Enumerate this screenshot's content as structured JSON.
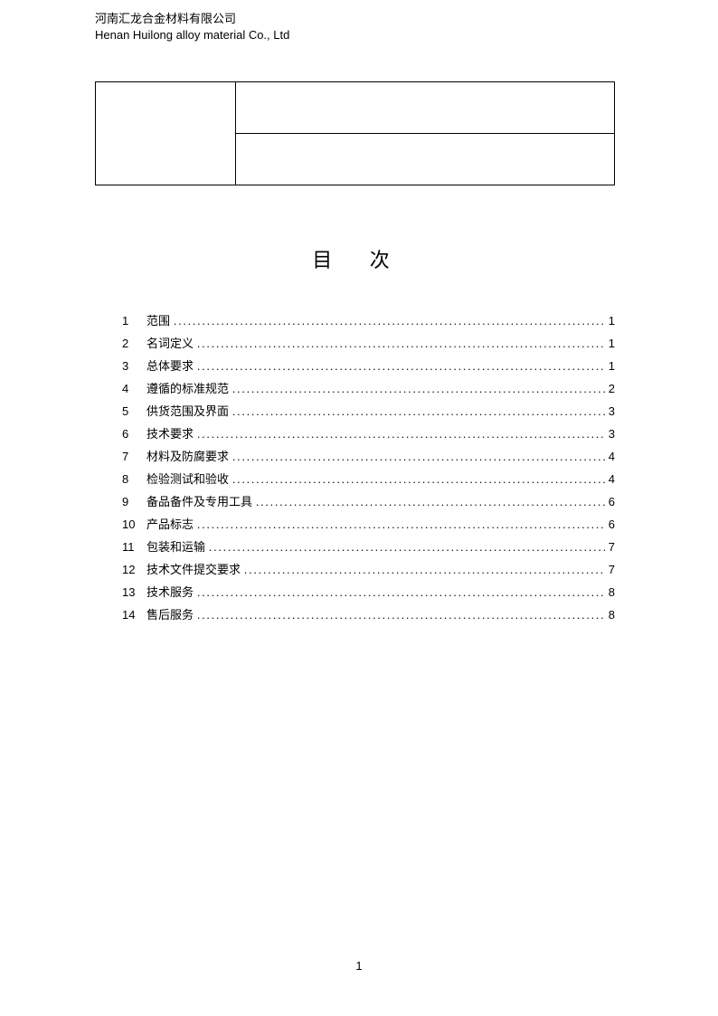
{
  "header": {
    "company_cn": "河南汇龙合金材料有限公司",
    "company_en": "Henan Huilong alloy material Co., Ltd"
  },
  "title": "目 次",
  "toc": [
    {
      "num": "1",
      "label": "范围",
      "page": "1"
    },
    {
      "num": "2",
      "label": "名词定义",
      "page": "1"
    },
    {
      "num": "3",
      "label": "总体要求",
      "page": "1"
    },
    {
      "num": "4",
      "label": "遵循的标准规范",
      "page": "2"
    },
    {
      "num": "5",
      "label": "供货范围及界面",
      "page": "3"
    },
    {
      "num": "6",
      "label": "技术要求",
      "page": "3"
    },
    {
      "num": "7",
      "label": "材料及防腐要求",
      "page": "4"
    },
    {
      "num": "8",
      "label": "检验测试和验收",
      "page": "4"
    },
    {
      "num": "9",
      "label": "备品备件及专用工具",
      "page": "6"
    },
    {
      "num": "10",
      "label": "产品标志",
      "page": "6"
    },
    {
      "num": "11",
      "label": "包装和运输",
      "page": "7"
    },
    {
      "num": "12",
      "label": "技术文件提交要求",
      "page": "7"
    },
    {
      "num": "13",
      "label": "技术服务",
      "page": "8"
    },
    {
      "num": "14",
      "label": "售后服务",
      "page": "8"
    }
  ],
  "footer": {
    "page_number": "1"
  }
}
